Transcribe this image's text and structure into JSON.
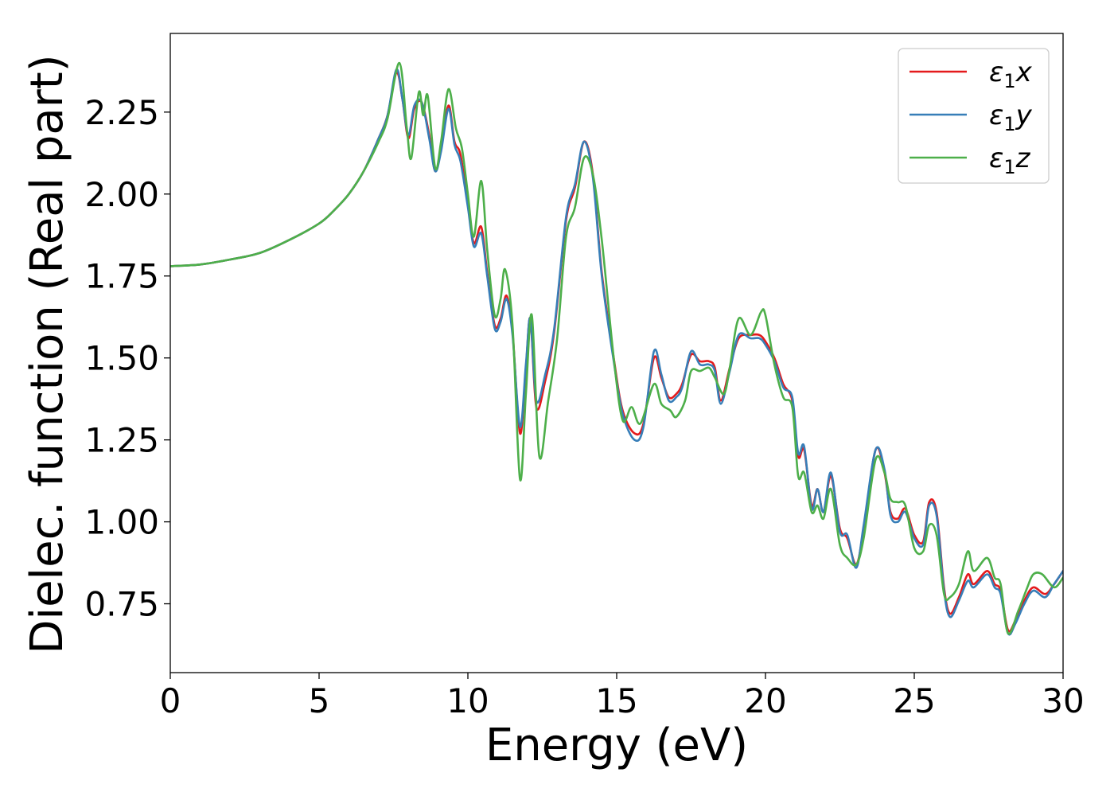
{
  "chart_data": {
    "type": "line",
    "title": "",
    "xlabel": "Energy (eV)",
    "ylabel": "Dielec. function (Real part)",
    "xlim": [
      0,
      30
    ],
    "ylim": [
      0.54,
      2.49
    ],
    "xticks": [
      0,
      5,
      10,
      15,
      20,
      25,
      30
    ],
    "xtick_labels": [
      "0",
      "5",
      "10",
      "15",
      "20",
      "25",
      "30"
    ],
    "yticks": [
      0.75,
      1.0,
      1.25,
      1.5,
      1.75,
      2.0,
      2.25
    ],
    "ytick_labels": [
      "0.75",
      "1.00",
      "1.25",
      "1.50",
      "1.75",
      "2.00",
      "2.25"
    ],
    "grid": false,
    "legend_position": "top-right",
    "series": [
      {
        "name": "ε₁x",
        "legend_main": "ε",
        "legend_sub": "1",
        "legend_var": "x",
        "color": "#e41a1c",
        "points": [
          [
            0,
            1.78
          ],
          [
            1,
            1.785
          ],
          [
            2,
            1.8
          ],
          [
            3,
            1.82
          ],
          [
            4,
            1.86
          ],
          [
            5,
            1.91
          ],
          [
            5.5,
            1.95
          ],
          [
            6,
            2.0
          ],
          [
            6.5,
            2.07
          ],
          [
            7,
            2.17
          ],
          [
            7.3,
            2.24
          ],
          [
            7.6,
            2.37
          ],
          [
            7.8,
            2.29
          ],
          [
            8.0,
            2.17
          ],
          [
            8.2,
            2.26
          ],
          [
            8.45,
            2.28
          ],
          [
            8.7,
            2.18
          ],
          [
            8.9,
            2.07
          ],
          [
            9.1,
            2.14
          ],
          [
            9.35,
            2.27
          ],
          [
            9.55,
            2.16
          ],
          [
            9.75,
            2.12
          ],
          [
            10.0,
            1.97
          ],
          [
            10.2,
            1.85
          ],
          [
            10.45,
            1.9
          ],
          [
            10.65,
            1.76
          ],
          [
            10.9,
            1.6
          ],
          [
            11.1,
            1.62
          ],
          [
            11.3,
            1.69
          ],
          [
            11.5,
            1.58
          ],
          [
            11.75,
            1.27
          ],
          [
            11.95,
            1.47
          ],
          [
            12.1,
            1.62
          ],
          [
            12.3,
            1.35
          ],
          [
            12.6,
            1.43
          ],
          [
            12.9,
            1.58
          ],
          [
            13.3,
            1.92
          ],
          [
            13.6,
            2.02
          ],
          [
            13.9,
            2.16
          ],
          [
            14.2,
            2.06
          ],
          [
            14.5,
            1.76
          ],
          [
            14.9,
            1.5
          ],
          [
            15.2,
            1.34
          ],
          [
            15.6,
            1.27
          ],
          [
            15.9,
            1.3
          ],
          [
            16.25,
            1.5
          ],
          [
            16.5,
            1.44
          ],
          [
            16.75,
            1.38
          ],
          [
            17.0,
            1.39
          ],
          [
            17.2,
            1.42
          ],
          [
            17.5,
            1.51
          ],
          [
            17.8,
            1.49
          ],
          [
            18.1,
            1.49
          ],
          [
            18.3,
            1.47
          ],
          [
            18.5,
            1.37
          ],
          [
            18.8,
            1.47
          ],
          [
            19.1,
            1.56
          ],
          [
            19.5,
            1.57
          ],
          [
            19.8,
            1.57
          ],
          [
            20.0,
            1.55
          ],
          [
            20.3,
            1.5
          ],
          [
            20.6,
            1.42
          ],
          [
            20.9,
            1.37
          ],
          [
            21.1,
            1.2
          ],
          [
            21.3,
            1.22
          ],
          [
            21.55,
            1.05
          ],
          [
            21.75,
            1.1
          ],
          [
            21.95,
            1.03
          ],
          [
            22.2,
            1.14
          ],
          [
            22.5,
            0.98
          ],
          [
            22.75,
            0.95
          ],
          [
            23.05,
            0.87
          ],
          [
            23.3,
            0.98
          ],
          [
            23.7,
            1.22
          ],
          [
            24.0,
            1.15
          ],
          [
            24.2,
            1.03
          ],
          [
            24.45,
            1.01
          ],
          [
            24.7,
            1.04
          ],
          [
            25.0,
            0.96
          ],
          [
            25.3,
            0.94
          ],
          [
            25.5,
            1.06
          ],
          [
            25.75,
            1.03
          ],
          [
            26.0,
            0.8
          ],
          [
            26.2,
            0.72
          ],
          [
            26.5,
            0.77
          ],
          [
            26.8,
            0.84
          ],
          [
            27.0,
            0.81
          ],
          [
            27.45,
            0.85
          ],
          [
            27.7,
            0.81
          ],
          [
            27.9,
            0.79
          ],
          [
            28.15,
            0.67
          ],
          [
            28.4,
            0.7
          ],
          [
            28.7,
            0.76
          ],
          [
            29.0,
            0.8
          ],
          [
            29.4,
            0.78
          ],
          [
            29.7,
            0.81
          ],
          [
            30.0,
            0.85
          ]
        ]
      },
      {
        "name": "ε₁y",
        "legend_main": "ε",
        "legend_sub": "1",
        "legend_var": "y",
        "color": "#377eb8",
        "points": [
          [
            0,
            1.78
          ],
          [
            1,
            1.785
          ],
          [
            2,
            1.8
          ],
          [
            3,
            1.82
          ],
          [
            4,
            1.86
          ],
          [
            5,
            1.91
          ],
          [
            5.5,
            1.95
          ],
          [
            6,
            2.0
          ],
          [
            6.5,
            2.07
          ],
          [
            7,
            2.17
          ],
          [
            7.3,
            2.24
          ],
          [
            7.6,
            2.38
          ],
          [
            7.8,
            2.29
          ],
          [
            8.0,
            2.18
          ],
          [
            8.2,
            2.27
          ],
          [
            8.45,
            2.28
          ],
          [
            8.7,
            2.17
          ],
          [
            8.9,
            2.07
          ],
          [
            9.1,
            2.13
          ],
          [
            9.35,
            2.26
          ],
          [
            9.55,
            2.15
          ],
          [
            9.75,
            2.1
          ],
          [
            10.0,
            1.96
          ],
          [
            10.2,
            1.84
          ],
          [
            10.45,
            1.88
          ],
          [
            10.65,
            1.75
          ],
          [
            10.9,
            1.59
          ],
          [
            11.1,
            1.61
          ],
          [
            11.3,
            1.68
          ],
          [
            11.5,
            1.57
          ],
          [
            11.75,
            1.29
          ],
          [
            11.95,
            1.48
          ],
          [
            12.1,
            1.62
          ],
          [
            12.3,
            1.37
          ],
          [
            12.6,
            1.45
          ],
          [
            12.9,
            1.59
          ],
          [
            13.3,
            1.93
          ],
          [
            13.6,
            2.03
          ],
          [
            13.9,
            2.16
          ],
          [
            14.2,
            2.05
          ],
          [
            14.5,
            1.75
          ],
          [
            14.9,
            1.49
          ],
          [
            15.2,
            1.33
          ],
          [
            15.6,
            1.25
          ],
          [
            15.9,
            1.29
          ],
          [
            16.25,
            1.52
          ],
          [
            16.5,
            1.45
          ],
          [
            16.75,
            1.37
          ],
          [
            17.0,
            1.38
          ],
          [
            17.2,
            1.41
          ],
          [
            17.5,
            1.52
          ],
          [
            17.8,
            1.48
          ],
          [
            18.1,
            1.48
          ],
          [
            18.3,
            1.46
          ],
          [
            18.5,
            1.36
          ],
          [
            18.8,
            1.46
          ],
          [
            19.1,
            1.57
          ],
          [
            19.5,
            1.56
          ],
          [
            19.8,
            1.56
          ],
          [
            20.0,
            1.54
          ],
          [
            20.3,
            1.49
          ],
          [
            20.6,
            1.41
          ],
          [
            20.9,
            1.38
          ],
          [
            21.1,
            1.21
          ],
          [
            21.3,
            1.23
          ],
          [
            21.55,
            1.04
          ],
          [
            21.75,
            1.1
          ],
          [
            21.95,
            1.03
          ],
          [
            22.2,
            1.15
          ],
          [
            22.5,
            0.97
          ],
          [
            22.75,
            0.96
          ],
          [
            23.05,
            0.86
          ],
          [
            23.3,
            0.99
          ],
          [
            23.7,
            1.22
          ],
          [
            24.0,
            1.16
          ],
          [
            24.2,
            1.02
          ],
          [
            24.45,
            1.0
          ],
          [
            24.7,
            1.03
          ],
          [
            25.0,
            0.95
          ],
          [
            25.3,
            0.93
          ],
          [
            25.5,
            1.05
          ],
          [
            25.75,
            1.02
          ],
          [
            26.0,
            0.79
          ],
          [
            26.2,
            0.71
          ],
          [
            26.5,
            0.76
          ],
          [
            26.8,
            0.82
          ],
          [
            27.0,
            0.8
          ],
          [
            27.45,
            0.84
          ],
          [
            27.7,
            0.8
          ],
          [
            27.9,
            0.78
          ],
          [
            28.15,
            0.66
          ],
          [
            28.4,
            0.69
          ],
          [
            28.7,
            0.75
          ],
          [
            29.0,
            0.79
          ],
          [
            29.4,
            0.77
          ],
          [
            29.7,
            0.81
          ],
          [
            30.0,
            0.85
          ]
        ]
      },
      {
        "name": "ε₁z",
        "legend_main": "ε",
        "legend_sub": "1",
        "legend_var": "z",
        "color": "#4daf4a",
        "points": [
          [
            0,
            1.78
          ],
          [
            1,
            1.785
          ],
          [
            2,
            1.8
          ],
          [
            3,
            1.82
          ],
          [
            4,
            1.86
          ],
          [
            5,
            1.91
          ],
          [
            5.5,
            1.95
          ],
          [
            6,
            2.0
          ],
          [
            6.5,
            2.07
          ],
          [
            7,
            2.16
          ],
          [
            7.3,
            2.23
          ],
          [
            7.7,
            2.4
          ],
          [
            7.95,
            2.2
          ],
          [
            8.1,
            2.11
          ],
          [
            8.35,
            2.31
          ],
          [
            8.5,
            2.24
          ],
          [
            8.65,
            2.3
          ],
          [
            8.9,
            2.08
          ],
          [
            9.1,
            2.16
          ],
          [
            9.35,
            2.32
          ],
          [
            9.6,
            2.2
          ],
          [
            9.8,
            2.14
          ],
          [
            10.0,
            2.0
          ],
          [
            10.2,
            1.87
          ],
          [
            10.45,
            2.04
          ],
          [
            10.65,
            1.83
          ],
          [
            10.9,
            1.63
          ],
          [
            11.1,
            1.68
          ],
          [
            11.25,
            1.77
          ],
          [
            11.5,
            1.6
          ],
          [
            11.75,
            1.13
          ],
          [
            11.95,
            1.39
          ],
          [
            12.15,
            1.63
          ],
          [
            12.4,
            1.2
          ],
          [
            12.7,
            1.37
          ],
          [
            13.0,
            1.56
          ],
          [
            13.3,
            1.87
          ],
          [
            13.6,
            1.96
          ],
          [
            13.9,
            2.11
          ],
          [
            14.2,
            2.06
          ],
          [
            14.5,
            1.86
          ],
          [
            14.9,
            1.5
          ],
          [
            15.2,
            1.31
          ],
          [
            15.5,
            1.35
          ],
          [
            15.8,
            1.3
          ],
          [
            16.25,
            1.42
          ],
          [
            16.5,
            1.36
          ],
          [
            16.8,
            1.34
          ],
          [
            17.0,
            1.32
          ],
          [
            17.3,
            1.37
          ],
          [
            17.5,
            1.46
          ],
          [
            17.8,
            1.46
          ],
          [
            18.1,
            1.47
          ],
          [
            18.3,
            1.44
          ],
          [
            18.6,
            1.39
          ],
          [
            18.8,
            1.47
          ],
          [
            19.1,
            1.62
          ],
          [
            19.5,
            1.57
          ],
          [
            19.85,
            1.64
          ],
          [
            20.0,
            1.63
          ],
          [
            20.3,
            1.48
          ],
          [
            20.6,
            1.38
          ],
          [
            20.9,
            1.35
          ],
          [
            21.1,
            1.14
          ],
          [
            21.3,
            1.15
          ],
          [
            21.55,
            1.03
          ],
          [
            21.75,
            1.05
          ],
          [
            21.95,
            1.01
          ],
          [
            22.2,
            1.1
          ],
          [
            22.5,
            0.93
          ],
          [
            22.75,
            0.89
          ],
          [
            23.05,
            0.87
          ],
          [
            23.3,
            0.95
          ],
          [
            23.7,
            1.19
          ],
          [
            24.0,
            1.15
          ],
          [
            24.2,
            1.07
          ],
          [
            24.45,
            1.06
          ],
          [
            24.7,
            1.05
          ],
          [
            25.0,
            0.92
          ],
          [
            25.3,
            0.91
          ],
          [
            25.5,
            0.99
          ],
          [
            25.75,
            0.96
          ],
          [
            26.0,
            0.78
          ],
          [
            26.2,
            0.77
          ],
          [
            26.5,
            0.81
          ],
          [
            26.8,
            0.91
          ],
          [
            27.0,
            0.85
          ],
          [
            27.45,
            0.89
          ],
          [
            27.7,
            0.83
          ],
          [
            27.9,
            0.81
          ],
          [
            28.15,
            0.66
          ],
          [
            28.5,
            0.73
          ],
          [
            28.8,
            0.8
          ],
          [
            29.0,
            0.84
          ],
          [
            29.3,
            0.84
          ],
          [
            29.7,
            0.8
          ],
          [
            30.0,
            0.83
          ]
        ]
      }
    ]
  }
}
